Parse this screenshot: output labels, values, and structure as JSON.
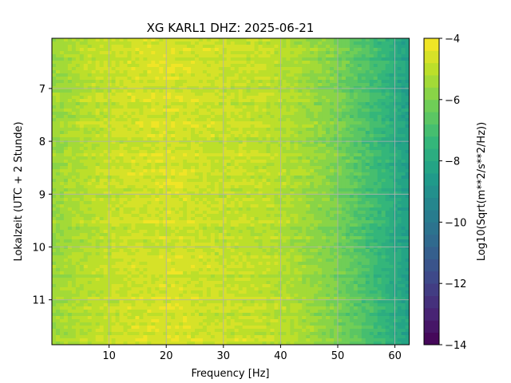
{
  "chart_data": {
    "type": "heatmap",
    "title": "XG KARL1  DHZ: 2025-06-21",
    "xlabel": "Frequency [Hz]",
    "ylabel": "Lokalzeit (UTC + 2 Stunde)",
    "xlim": [
      0,
      62.5
    ],
    "ylim": [
      11.85,
      6.05
    ],
    "y_inverted": true,
    "grid": true,
    "x_ticks": [
      10,
      20,
      30,
      40,
      50,
      60
    ],
    "y_ticks": [
      7,
      8,
      9,
      10,
      11
    ],
    "colorbar": {
      "label": "Log10(Sqrt(m**2/s**2/Hz))",
      "range": [
        -14,
        -4
      ],
      "ticks": [
        -4,
        -6,
        -8,
        -10,
        -12,
        -14
      ],
      "colormap": "viridis",
      "levels": 25
    },
    "column_profile": [
      {
        "freq": 0,
        "value": -5.6
      },
      {
        "freq": 2,
        "value": -5.4
      },
      {
        "freq": 6,
        "value": -5.1
      },
      {
        "freq": 12,
        "value": -4.8
      },
      {
        "freq": 20,
        "value": -4.6
      },
      {
        "freq": 28,
        "value": -4.8
      },
      {
        "freq": 35,
        "value": -4.9
      },
      {
        "freq": 40,
        "value": -5.1
      },
      {
        "freq": 45,
        "value": -5.5
      },
      {
        "freq": 49,
        "value": -5.9
      },
      {
        "freq": 52,
        "value": -6.4
      },
      {
        "freq": 55,
        "value": -6.9
      },
      {
        "freq": 58,
        "value": -7.4
      },
      {
        "freq": 61,
        "value": -8.1
      },
      {
        "freq": 62.5,
        "value": -8.4
      }
    ]
  }
}
